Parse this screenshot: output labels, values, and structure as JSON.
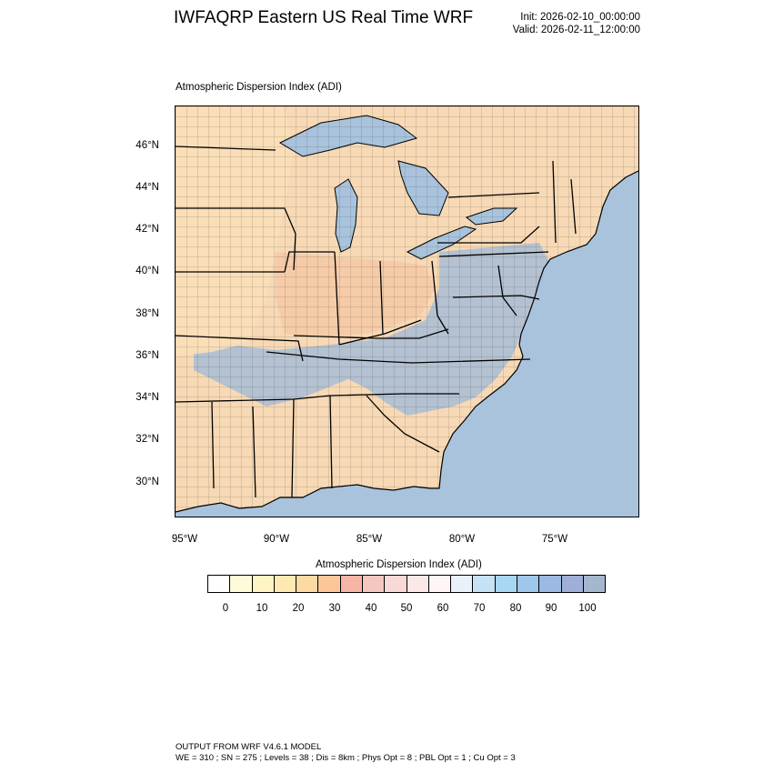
{
  "header": {
    "title": "IWFAQRP Eastern US Real Time WRF",
    "init": "Init: 2026-02-10_00:00:00",
    "valid": "Valid: 2026-02-11_12:00:00"
  },
  "map": {
    "subtitle": "Atmospheric Dispersion Index   (ADI)",
    "lat_labels": [
      "46°N",
      "44°N",
      "42°N",
      "40°N",
      "38°N",
      "36°N",
      "34°N",
      "32°N",
      "30°N"
    ],
    "lon_labels": [
      "95°W",
      "90°W",
      "85°W",
      "80°W",
      "75°W"
    ],
    "colors": {
      "ocean": "#a9c3dc",
      "lakes": "#a9c3dc",
      "borders": "#000000"
    }
  },
  "colorbar": {
    "title": "Atmospheric Dispersion Index  (ADI)",
    "tick_labels": [
      "0",
      "10",
      "20",
      "30",
      "40",
      "50",
      "60",
      "70",
      "80",
      "90",
      "100"
    ],
    "colors": [
      "#ffffff",
      "#fffbd8",
      "#fff4c4",
      "#feeab0",
      "#fdd9a4",
      "#fcc69a",
      "#f7b5a6",
      "#f6c7c0",
      "#f8d9d7",
      "#fbe9e8",
      "#fdf5f6",
      "#e9f1fb",
      "#c5e3f5",
      "#a8d6f3",
      "#9fc7ec",
      "#9bb9e3",
      "#9fb0d8",
      "#a5b6cf"
    ]
  },
  "footer": {
    "line1": "OUTPUT FROM WRF V4.6.1 MODEL",
    "line2": "WE = 310 ; SN = 275 ; Levels = 38 ; Dis = 8km ; Phys Opt = 8 ; PBL Opt = 1 ; Cu Opt = 3"
  }
}
